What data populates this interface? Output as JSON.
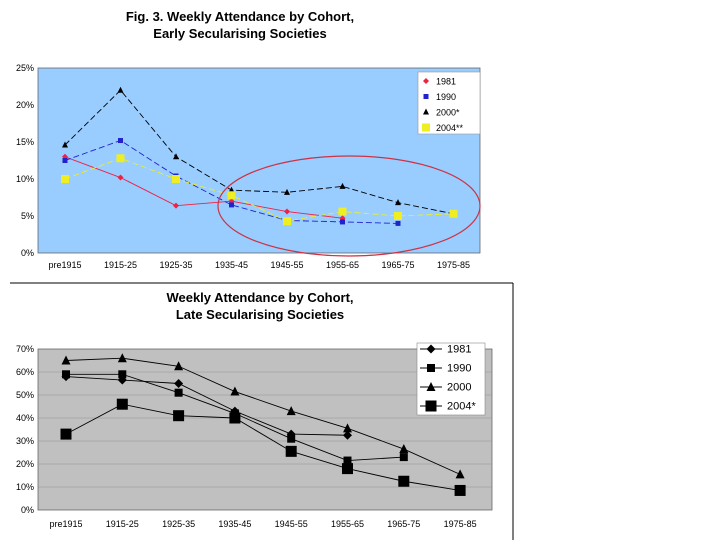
{
  "chart_data": [
    {
      "type": "line",
      "title_line1": "Fig. 3. Weekly Attendance by Cohort,",
      "title_line2": "Early Secularising Societies",
      "categories": [
        "pre1915",
        "1915-25",
        "1925-35",
        "1935-45",
        "1945-55",
        "1955-65",
        "1965-75",
        "1975-85"
      ],
      "y_ticks": [
        "0%",
        "5%",
        "10%",
        "15%",
        "20%",
        "25%"
      ],
      "ylim": [
        0,
        25
      ],
      "colors": {
        "plot_bg": "#99ccff",
        "annotation": "#cc3344"
      },
      "annotation": "ellipse around 1935-45 to 1975-85 cohorts",
      "series": [
        {
          "name": "1981",
          "color": "#ee2244",
          "marker": "diamond",
          "dash": "none",
          "values": [
            13.0,
            10.2,
            6.4,
            7.0,
            5.6,
            4.7,
            null,
            null
          ]
        },
        {
          "name": "1990",
          "color": "#2222cc",
          "marker": "square",
          "dash": "6,3",
          "values": [
            12.5,
            15.2,
            10.4,
            6.5,
            4.4,
            4.2,
            4.0,
            null
          ]
        },
        {
          "name": "2000*",
          "color": "#000000",
          "marker": "triangle",
          "dash": "6,3",
          "values": [
            14.6,
            22.0,
            13.0,
            8.5,
            8.2,
            9.0,
            6.8,
            5.3
          ]
        },
        {
          "name": "2004**",
          "color": "#eeee22",
          "marker": "bigsquare",
          "dash": "6,3",
          "values": [
            10.0,
            12.8,
            10.0,
            7.8,
            4.3,
            5.6,
            5.0,
            5.3
          ]
        }
      ]
    },
    {
      "type": "line",
      "title_line1": "Weekly Attendance by Cohort,",
      "title_line2": "Late Secularising Societies",
      "categories": [
        "pre1915",
        "1915-25",
        "1925-35",
        "1935-45",
        "1945-55",
        "1955-65",
        "1965-75",
        "1975-85"
      ],
      "y_ticks": [
        "0%",
        "10%",
        "20%",
        "30%",
        "40%",
        "50%",
        "60%",
        "70%"
      ],
      "ylim": [
        0,
        70
      ],
      "colors": {
        "plot_bg": "#c0c0c0"
      },
      "series": [
        {
          "name": "1981",
          "color": "#000000",
          "marker": "diamond",
          "values": [
            58,
            56.5,
            55,
            43,
            33,
            32.5,
            null,
            null
          ]
        },
        {
          "name": "1990",
          "color": "#000000",
          "marker": "square",
          "values": [
            59,
            59,
            51,
            42,
            31,
            21.5,
            23,
            null
          ]
        },
        {
          "name": "2000",
          "color": "#000000",
          "marker": "triangle",
          "values": [
            65,
            66,
            62.5,
            51.5,
            43,
            35.5,
            26.5,
            15.5
          ]
        },
        {
          "name": "2004*",
          "color": "#000000",
          "marker": "bigsquare",
          "values": [
            33,
            46,
            41,
            40,
            25.5,
            18,
            12.5,
            8.5
          ]
        }
      ]
    }
  ]
}
